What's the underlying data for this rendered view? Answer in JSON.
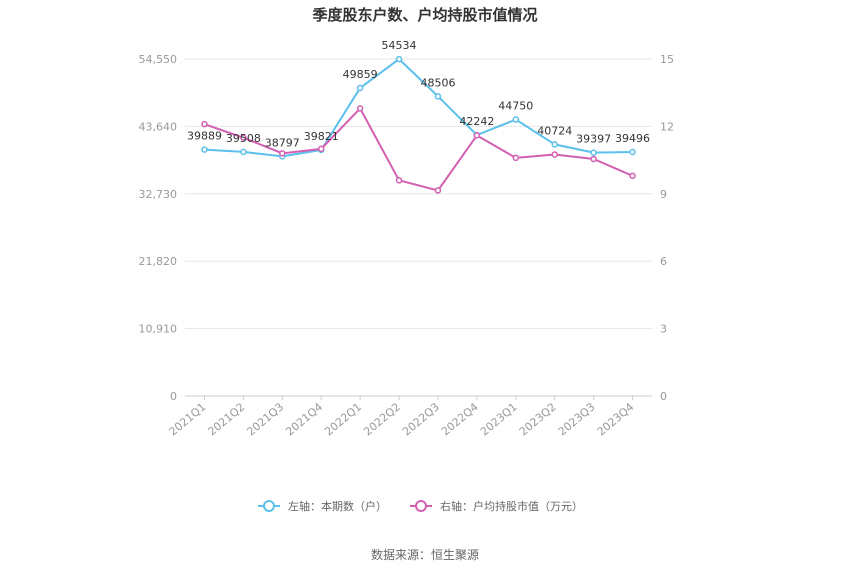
{
  "chart_data": {
    "type": "line",
    "title": "季度股东户数、户均持股市值情况",
    "categories": [
      "2021Q1",
      "2021Q2",
      "2021Q3",
      "2021Q4",
      "2022Q1",
      "2022Q2",
      "2022Q3",
      "2022Q4",
      "2023Q1",
      "2023Q2",
      "2023Q3",
      "2023Q4"
    ],
    "left_axis": {
      "ticks": [
        "0",
        "10,910",
        "21,820",
        "32,730",
        "43,640",
        "54,550"
      ],
      "min": 0,
      "max": 54550
    },
    "right_axis": {
      "ticks": [
        "0",
        "3",
        "6",
        "9",
        "12",
        "15"
      ],
      "min": 0,
      "max": 15
    },
    "series": [
      {
        "name": "左轴：本期数（户）",
        "axis": "left",
        "color": "#5bc0eb",
        "values": [
          39889,
          39508,
          38797,
          39821,
          49859,
          54534,
          48506,
          42242,
          44750,
          40724,
          39397,
          39496
        ],
        "labels": [
          "39889",
          "39508",
          "38797",
          "39821",
          "49859",
          "54534",
          "48506",
          "42242",
          "44750",
          "40724",
          "39397",
          "39496"
        ]
      },
      {
        "name": "右轴：户均持股市值（万元）",
        "axis": "right",
        "color": "#d35fb2",
        "values": [
          12.1,
          11.5,
          10.8,
          11.0,
          12.8,
          9.6,
          9.15,
          11.6,
          10.6,
          10.75,
          10.55,
          9.8
        ]
      }
    ],
    "grid": true,
    "legend_position": "bottom"
  },
  "source": "数据来源：恒生聚源"
}
